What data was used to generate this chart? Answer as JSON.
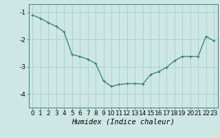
{
  "x": [
    0,
    1,
    2,
    3,
    4,
    5,
    6,
    7,
    8,
    9,
    10,
    11,
    12,
    13,
    14,
    15,
    16,
    17,
    18,
    19,
    20,
    21,
    22,
    23
  ],
  "y": [
    -1.1,
    -1.22,
    -1.38,
    -1.52,
    -1.72,
    -2.55,
    -2.62,
    -2.72,
    -2.88,
    -3.52,
    -3.72,
    -3.65,
    -3.62,
    -3.62,
    -3.63,
    -3.28,
    -3.18,
    -3.02,
    -2.78,
    -2.62,
    -2.62,
    -2.62,
    -1.88,
    -2.05
  ],
  "line_color": "#2e7d6e",
  "marker": "+",
  "marker_size": 3,
  "marker_linewidth": 0.8,
  "linewidth": 0.9,
  "bg_color": "#cde8e4",
  "grid_color": "#a8d4cc",
  "xlabel": "Humidex (Indice chaleur)",
  "xlabel_style": "italic",
  "xlabel_fontsize": 7.5,
  "ylim": [
    -4.5,
    -0.7
  ],
  "xlim": [
    -0.5,
    23.5
  ],
  "yticks": [
    -4,
    -3,
    -2,
    -1
  ],
  "xticks": [
    0,
    1,
    2,
    3,
    4,
    5,
    6,
    7,
    8,
    9,
    10,
    11,
    12,
    13,
    14,
    15,
    16,
    17,
    18,
    19,
    20,
    21,
    22,
    23
  ],
  "tick_fontsize": 6.5,
  "spine_color": "#4a8a80"
}
